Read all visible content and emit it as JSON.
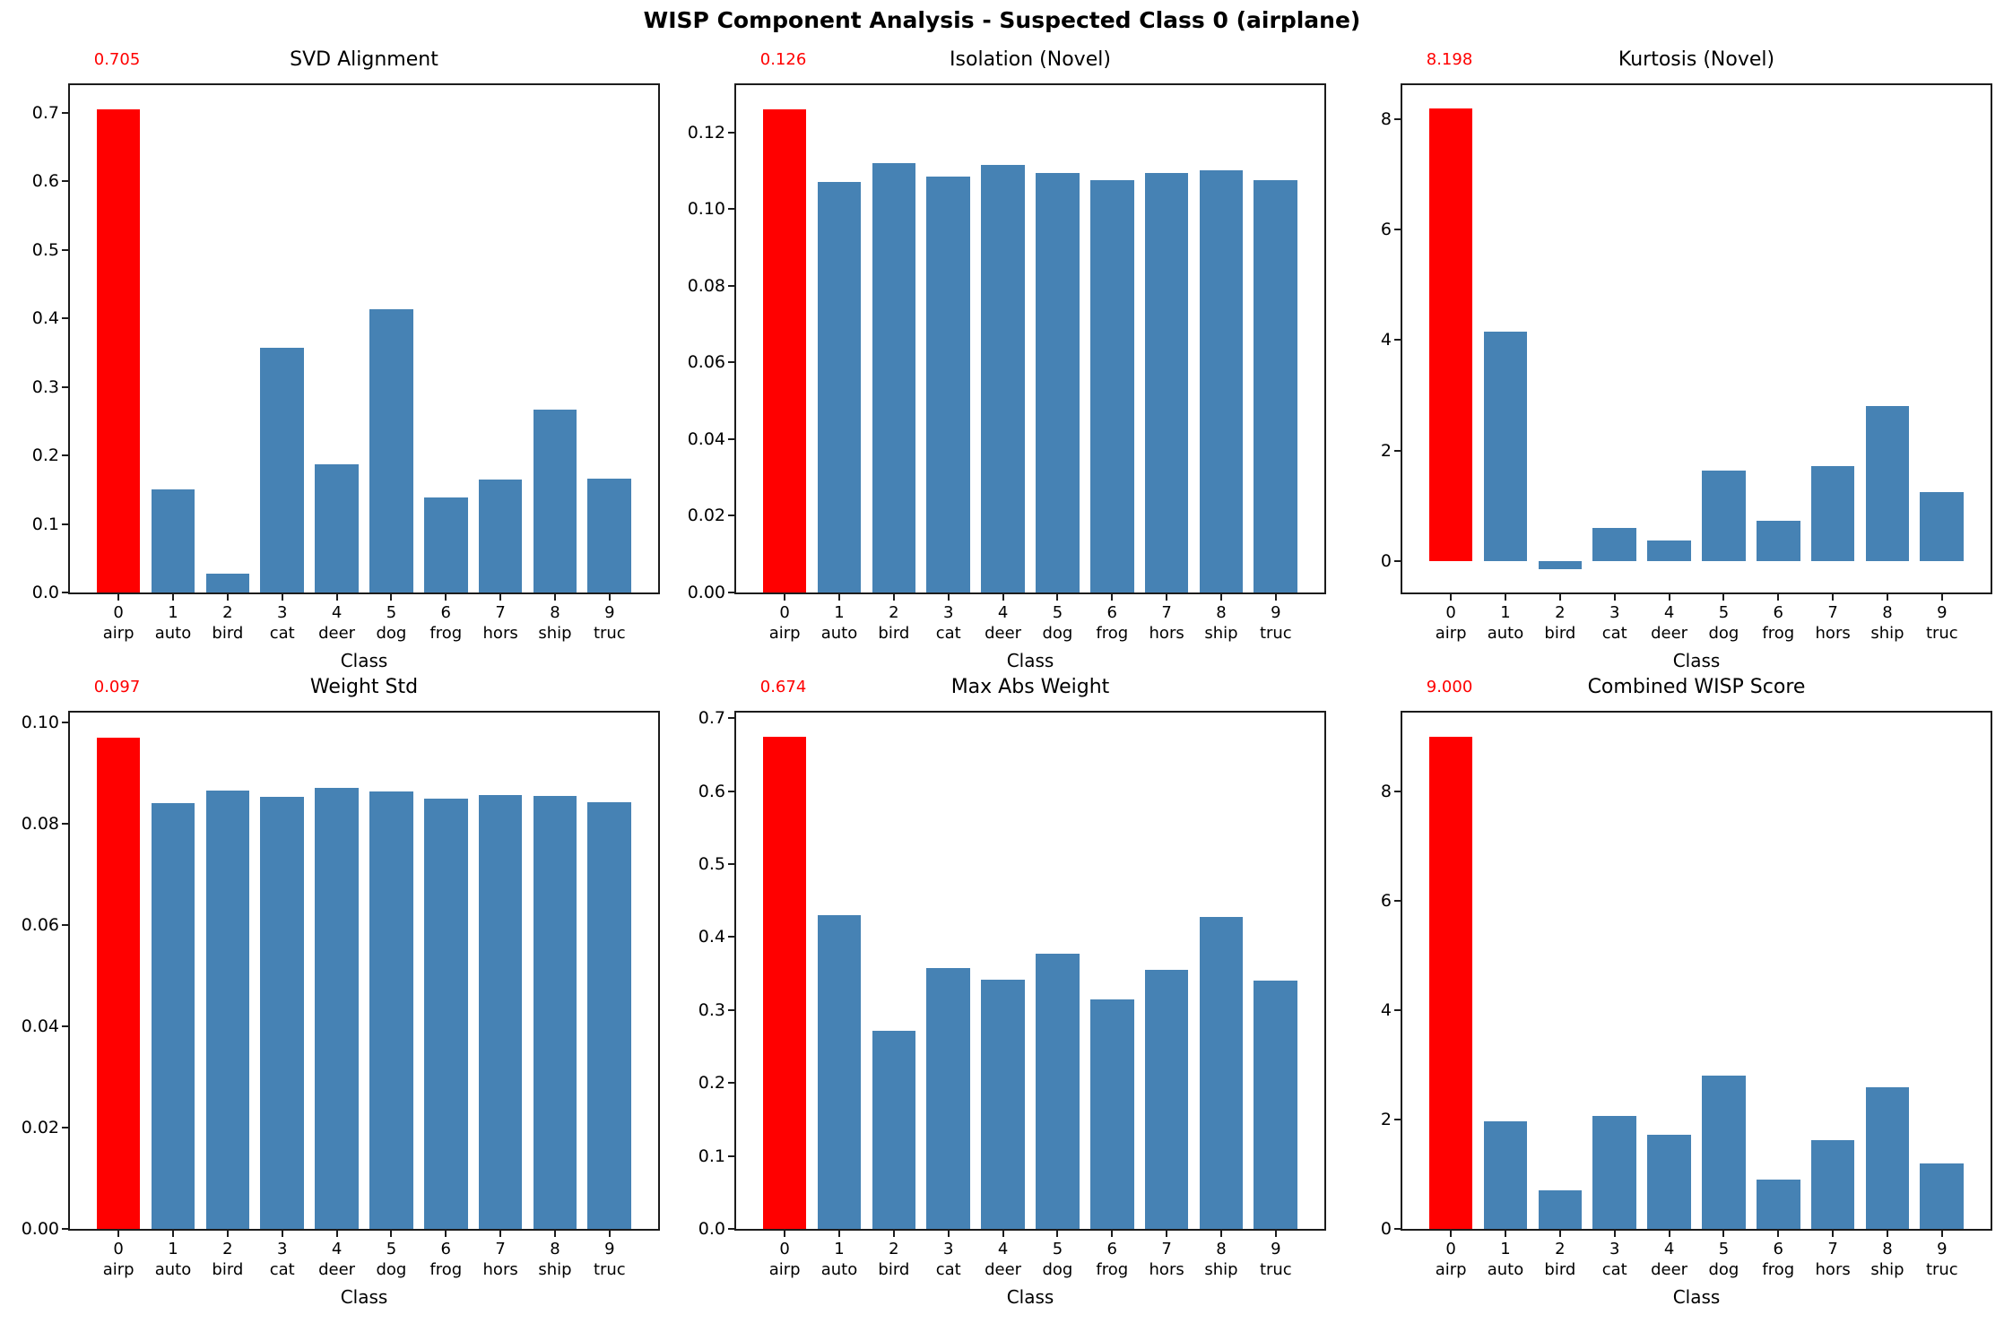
{
  "suptitle": "WISP Component Analysis - Suspected Class 0 (airplane)",
  "colors": {
    "bar": "#4682b4",
    "highlight": "#ff0000",
    "annotation_text": "#ff0000",
    "text": "#000000",
    "spine": "#1c1c1c"
  },
  "classes": {
    "ids": [
      "0",
      "1",
      "2",
      "3",
      "4",
      "5",
      "6",
      "7",
      "8",
      "9"
    ],
    "names": [
      "airp",
      "auto",
      "bird",
      "cat",
      "deer",
      "dog",
      "frog",
      "hors",
      "ship",
      "truc"
    ]
  },
  "chart_data": [
    {
      "type": "bar",
      "title": "SVD Alignment",
      "annotation": "0.705",
      "xlabel": "Class",
      "categories": [
        "0",
        "1",
        "2",
        "3",
        "4",
        "5",
        "6",
        "7",
        "8",
        "9"
      ],
      "category_names": [
        "airp",
        "auto",
        "bird",
        "cat",
        "deer",
        "dog",
        "frog",
        "hors",
        "ship",
        "truc"
      ],
      "values": [
        0.705,
        0.15,
        0.027,
        0.357,
        0.187,
        0.413,
        0.138,
        0.165,
        0.267,
        0.166
      ],
      "highlight_index": 0,
      "ylim": [
        0,
        0.74
      ],
      "yticks": [
        0.0,
        0.1,
        0.2,
        0.3,
        0.4,
        0.5,
        0.6,
        0.7
      ],
      "ytick_labels": [
        "0.0",
        "0.1",
        "0.2",
        "0.3",
        "0.4",
        "0.5",
        "0.6",
        "0.7"
      ],
      "grid": false,
      "legend": false
    },
    {
      "type": "bar",
      "title": "Isolation (Novel)",
      "annotation": "0.126",
      "xlabel": "Class",
      "categories": [
        "0",
        "1",
        "2",
        "3",
        "4",
        "5",
        "6",
        "7",
        "8",
        "9"
      ],
      "category_names": [
        "airp",
        "auto",
        "bird",
        "cat",
        "deer",
        "dog",
        "frog",
        "hors",
        "ship",
        "truc"
      ],
      "values": [
        0.126,
        0.107,
        0.112,
        0.1085,
        0.1115,
        0.1095,
        0.1075,
        0.1093,
        0.1102,
        0.1076
      ],
      "highlight_index": 0,
      "ylim": [
        0,
        0.1323
      ],
      "yticks": [
        0.0,
        0.02,
        0.04,
        0.06,
        0.08,
        0.1,
        0.12
      ],
      "ytick_labels": [
        "0.00",
        "0.02",
        "0.04",
        "0.06",
        "0.08",
        "0.10",
        "0.12"
      ],
      "grid": false,
      "legend": false
    },
    {
      "type": "bar",
      "title": "Kurtosis (Novel)",
      "annotation": "8.198",
      "xlabel": "Class",
      "categories": [
        "0",
        "1",
        "2",
        "3",
        "4",
        "5",
        "6",
        "7",
        "8",
        "9"
      ],
      "category_names": [
        "airp",
        "auto",
        "bird",
        "cat",
        "deer",
        "dog",
        "frog",
        "hors",
        "ship",
        "truc"
      ],
      "values": [
        8.198,
        4.15,
        -0.155,
        0.6,
        0.37,
        1.63,
        0.72,
        1.72,
        2.8,
        1.25
      ],
      "highlight_index": 0,
      "ylim": [
        -0.573,
        8.616
      ],
      "yticks": [
        0,
        2,
        4,
        6,
        8
      ],
      "ytick_labels": [
        "0",
        "2",
        "4",
        "6",
        "8"
      ],
      "grid": false,
      "legend": false
    },
    {
      "type": "bar",
      "title": "Weight Std",
      "annotation": "0.097",
      "xlabel": "Class",
      "categories": [
        "0",
        "1",
        "2",
        "3",
        "4",
        "5",
        "6",
        "7",
        "8",
        "9"
      ],
      "category_names": [
        "airp",
        "auto",
        "bird",
        "cat",
        "deer",
        "dog",
        "frog",
        "hors",
        "ship",
        "truc"
      ],
      "values": [
        0.097,
        0.084,
        0.0866,
        0.0852,
        0.0871,
        0.0864,
        0.0849,
        0.0857,
        0.0854,
        0.0843
      ],
      "highlight_index": 0,
      "ylim": [
        0,
        0.1019
      ],
      "yticks": [
        0.0,
        0.02,
        0.04,
        0.06,
        0.08,
        0.1
      ],
      "ytick_labels": [
        "0.00",
        "0.02",
        "0.04",
        "0.06",
        "0.08",
        "0.10"
      ],
      "grid": false,
      "legend": false
    },
    {
      "type": "bar",
      "title": "Max Abs Weight",
      "annotation": "0.674",
      "xlabel": "Class",
      "categories": [
        "0",
        "1",
        "2",
        "3",
        "4",
        "5",
        "6",
        "7",
        "8",
        "9"
      ],
      "category_names": [
        "airp",
        "auto",
        "bird",
        "cat",
        "deer",
        "dog",
        "frog",
        "hors",
        "ship",
        "truc"
      ],
      "values": [
        0.674,
        0.43,
        0.271,
        0.358,
        0.341,
        0.377,
        0.314,
        0.355,
        0.427,
        0.34
      ],
      "highlight_index": 0,
      "ylim": [
        0,
        0.7077
      ],
      "yticks": [
        0.0,
        0.1,
        0.2,
        0.3,
        0.4,
        0.5,
        0.6,
        0.7
      ],
      "ytick_labels": [
        "0.0",
        "0.1",
        "0.2",
        "0.3",
        "0.4",
        "0.5",
        "0.6",
        "0.7"
      ],
      "grid": false,
      "legend": false
    },
    {
      "type": "bar",
      "title": "Combined WISP Score",
      "annotation": "9.000",
      "xlabel": "Class",
      "categories": [
        "0",
        "1",
        "2",
        "3",
        "4",
        "5",
        "6",
        "7",
        "8",
        "9"
      ],
      "category_names": [
        "airp",
        "auto",
        "bird",
        "cat",
        "deer",
        "dog",
        "frog",
        "hors",
        "ship",
        "truc"
      ],
      "values": [
        9.0,
        1.97,
        0.7,
        2.07,
        1.72,
        2.8,
        0.9,
        1.62,
        2.6,
        1.2
      ],
      "highlight_index": 0,
      "ylim": [
        0,
        9.45
      ],
      "yticks": [
        0,
        2,
        4,
        6,
        8
      ],
      "ytick_labels": [
        "0",
        "2",
        "4",
        "6",
        "8"
      ],
      "grid": false,
      "legend": false
    }
  ]
}
